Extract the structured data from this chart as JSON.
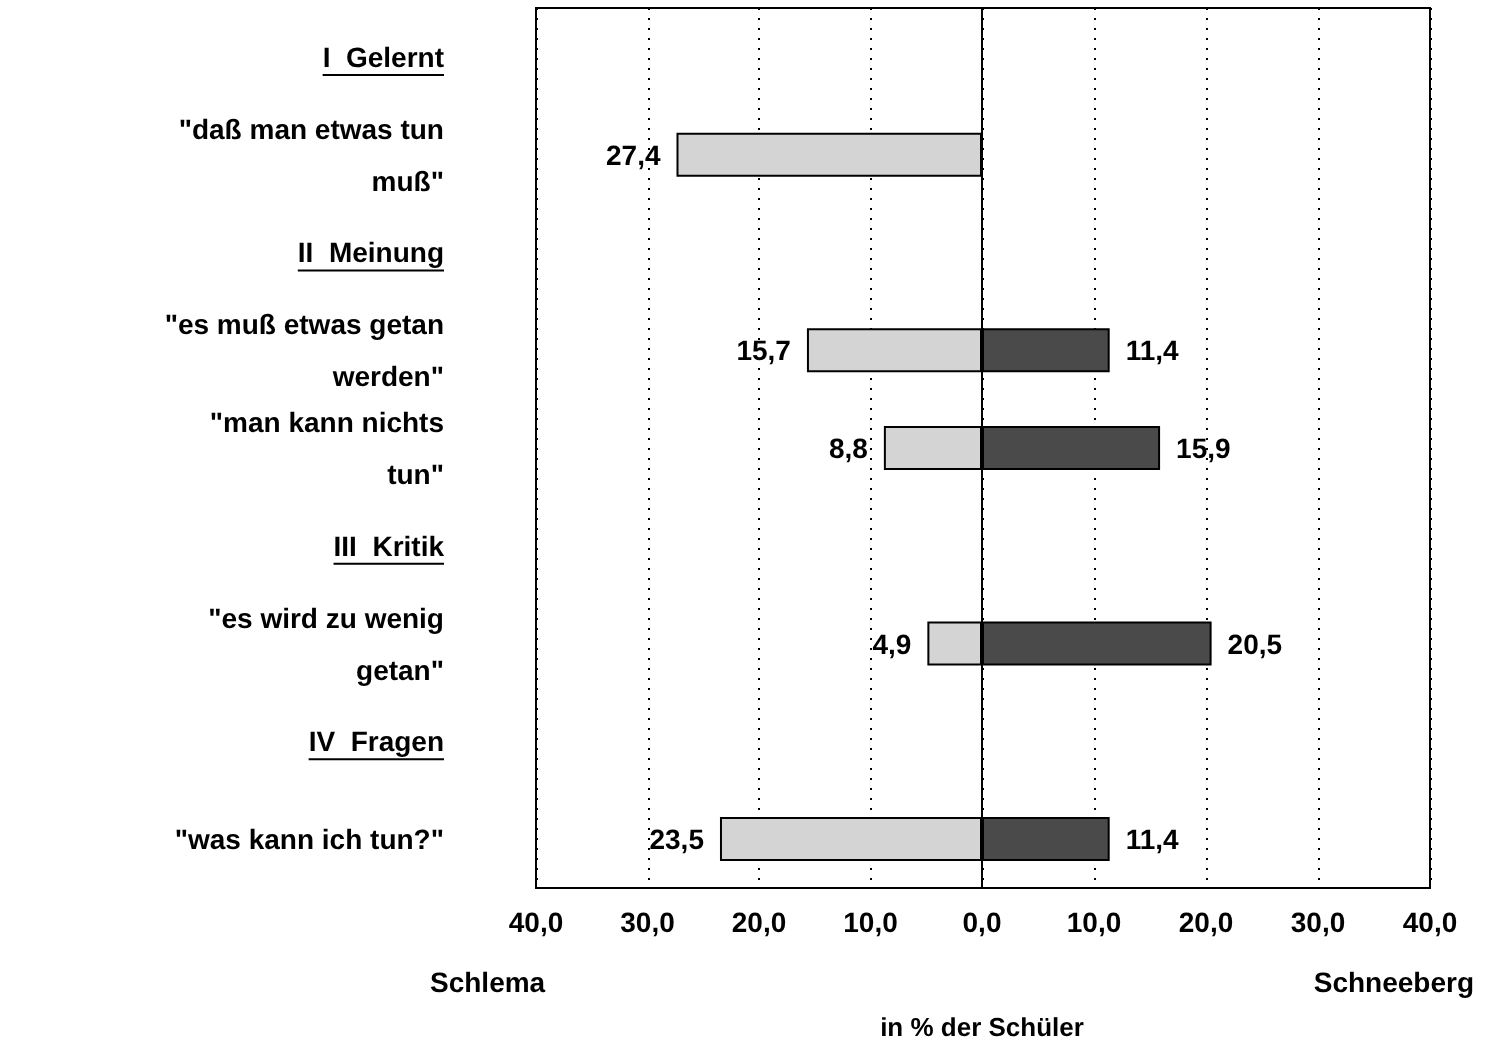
{
  "chart_data": [
    {
      "type": "bar",
      "orientation": "horizontal",
      "xlabel": "Schlema",
      "annotations": [
        "in % der Schüler"
      ],
      "categories": [
        "I  Gelernt",
        "\"daß man etwas tun\nmuß\"",
        "II  Meinung",
        "\"es muß etwas getan\nwerden\"",
        "\"man kann nichts\ntun\"",
        "III  Kritik",
        "\"es wird zu wenig\ngetan\"",
        "IV  Fragen",
        "\"was kann ich tun?\""
      ],
      "series": [
        {
          "color": "#d4d4d4",
          "values": [
            null,
            27.4,
            null,
            15.7,
            8.8,
            null,
            4.9,
            null,
            23.5
          ],
          "value_labels": [
            null,
            "27,4",
            null,
            "15,7",
            "8,8",
            null,
            "4,9",
            null,
            "23,5"
          ]
        }
      ],
      "xlim": [
        40,
        0
      ],
      "xticks": [
        {
          "value": 40,
          "label": "40,0"
        },
        {
          "value": 30,
          "label": "30,0"
        },
        {
          "value": 20,
          "label": "20,0"
        },
        {
          "value": 10,
          "label": "10,0"
        },
        {
          "value": 0,
          "label": "0,0"
        }
      ],
      "grid": "x"
    },
    {
      "type": "bar",
      "orientation": "horizontal",
      "xlabel": "Schneeberg",
      "series": [
        {
          "color": "#4a4a4a",
          "values": [
            null,
            null,
            null,
            11.4,
            15.9,
            null,
            20.5,
            null,
            11.4
          ],
          "value_labels": [
            null,
            null,
            null,
            "11,4",
            "15,9",
            null,
            "20,5",
            null,
            "11,4"
          ]
        }
      ],
      "xlim": [
        0,
        40
      ],
      "xticks": [
        {
          "value": 0,
          "label": null
        },
        {
          "value": 10,
          "label": "10,0"
        },
        {
          "value": 20,
          "label": "20,0"
        },
        {
          "value": 30,
          "label": "30,0"
        },
        {
          "value": 40,
          "label": "40,0"
        }
      ],
      "tick_labels": "x",
      "grid": "x"
    }
  ]
}
